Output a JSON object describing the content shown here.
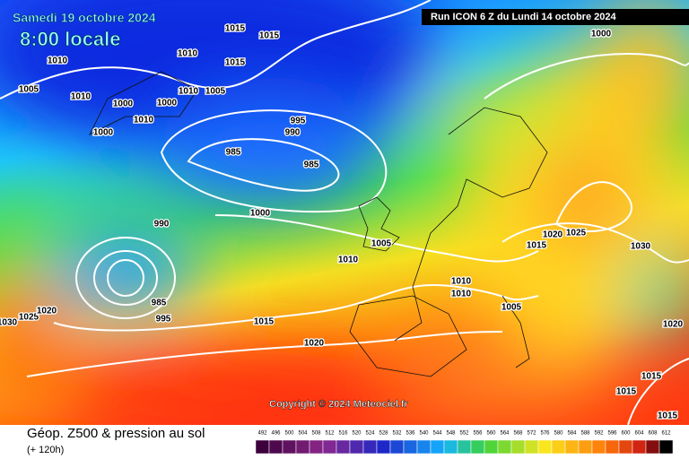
{
  "header": {
    "date": "Samedi 19 octobre 2024",
    "time": "8:00 locale",
    "run": "Run ICON 6 Z du Lundi 14 octobre 2024"
  },
  "copyright": "Copyright © 2024 Meteociel.fr",
  "footer": {
    "title": "Géop. Z500 & pression au sol",
    "subtitle": "(+ 120h)"
  },
  "colorbar": {
    "ticks": [
      492,
      496,
      500,
      504,
      508,
      512,
      516,
      520,
      524,
      528,
      532,
      536,
      540,
      544,
      548,
      552,
      556,
      560,
      564,
      568,
      572,
      576,
      580,
      584,
      588,
      592,
      596,
      600,
      604,
      608,
      612
    ]
  },
  "isobar_labels": [
    1015,
    1015,
    1010,
    1015,
    1010,
    1005,
    1010,
    1000,
    1010,
    1000,
    1010,
    1005,
    1000,
    995,
    990,
    985,
    985,
    1000,
    990,
    1005,
    1010,
    1015,
    1020,
    1025,
    1030,
    1010,
    1010,
    1005,
    1020,
    985,
    995,
    1015,
    1020,
    1030,
    1025,
    1020,
    1000,
    1015,
    1015,
    1015
  ]
}
